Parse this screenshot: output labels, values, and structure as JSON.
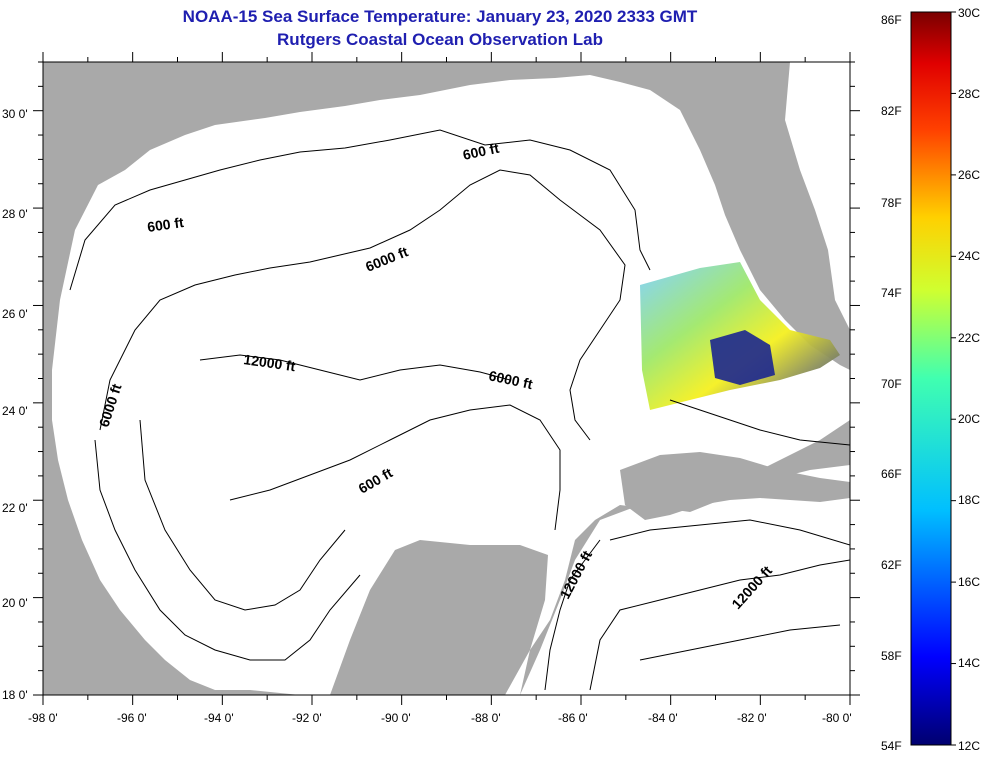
{
  "title": {
    "line1": "NOAA-15 Sea Surface Temperature:  January 23, 2020 2333 GMT",
    "line2": "Rutgers Coastal Ocean Observation Lab"
  },
  "map": {
    "lat_ticks": [
      "30 0'",
      "28 0'",
      "26 0'",
      "24 0'",
      "22 0'",
      "20 0'",
      "18 0'"
    ],
    "lon_ticks": [
      "-98 0'",
      "-96 0'",
      "-94 0'",
      "-92 0'",
      "-90 0'",
      "-88 0'",
      "-86 0'",
      "-84 0'",
      "-82 0'",
      "-80 0'"
    ],
    "contour_labels": {
      "c600_n": "600 ft",
      "c600_w": "600 ft",
      "c6000_n": "6000 ft",
      "c6000_w": "6000 ft",
      "c6000_c": "6000 ft",
      "c12000_a": "12000 ft",
      "c600_s": "600 ft",
      "c12000_b": "12000 ft",
      "c12000_c": "12000 ft"
    },
    "colors": {
      "land": "#a9a9a9",
      "ocean": "#ffffff",
      "contour": "#000000"
    }
  },
  "colorbar": {
    "fahrenheit_labels": [
      "86F",
      "82F",
      "78F",
      "74F",
      "70F",
      "66F",
      "62F",
      "58F",
      "54F"
    ],
    "celsius_labels": [
      "30C",
      "28C",
      "26C",
      "24C",
      "22C",
      "20C",
      "18C",
      "16C",
      "14C",
      "12C"
    ]
  }
}
